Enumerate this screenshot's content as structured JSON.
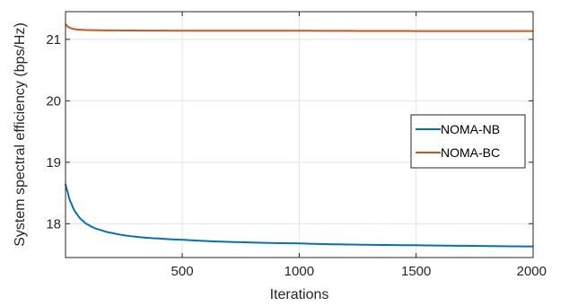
{
  "chart_data": {
    "type": "line",
    "title": "",
    "xlabel": "Iterations",
    "ylabel": "System spectral efficiency (bps/Hz)",
    "xlim": [
      1,
      2000
    ],
    "ylim": [
      17.45,
      21.45
    ],
    "xticks": [
      500,
      1000,
      1500,
      2000
    ],
    "xtick_labels": [
      "500",
      "1000",
      "1500",
      "2000"
    ],
    "yticks": [
      18,
      19,
      20,
      21
    ],
    "ytick_labels": [
      "18",
      "19",
      "20",
      "21"
    ],
    "grid": true,
    "legend_position": "right",
    "series": [
      {
        "name": "NOMA-NB",
        "color": "#0072BD",
        "x": [
          1,
          10,
          25,
          50,
          75,
          100,
          150,
          200,
          300,
          400,
          500,
          750,
          1000,
          1250,
          1500,
          1750,
          2000
        ],
        "y": [
          18.65,
          18.52,
          18.34,
          18.16,
          18.05,
          17.98,
          17.9,
          17.85,
          17.79,
          17.76,
          17.74,
          17.7,
          17.68,
          17.66,
          17.65,
          17.64,
          17.63
        ]
      },
      {
        "name": "NOMA-BC",
        "color": "#D95319",
        "x": [
          1,
          10,
          25,
          50,
          100,
          200,
          500,
          1000,
          1500,
          2000
        ],
        "y": [
          21.25,
          21.21,
          21.18,
          21.16,
          21.15,
          21.145,
          21.14,
          21.14,
          21.135,
          21.135
        ]
      }
    ]
  }
}
